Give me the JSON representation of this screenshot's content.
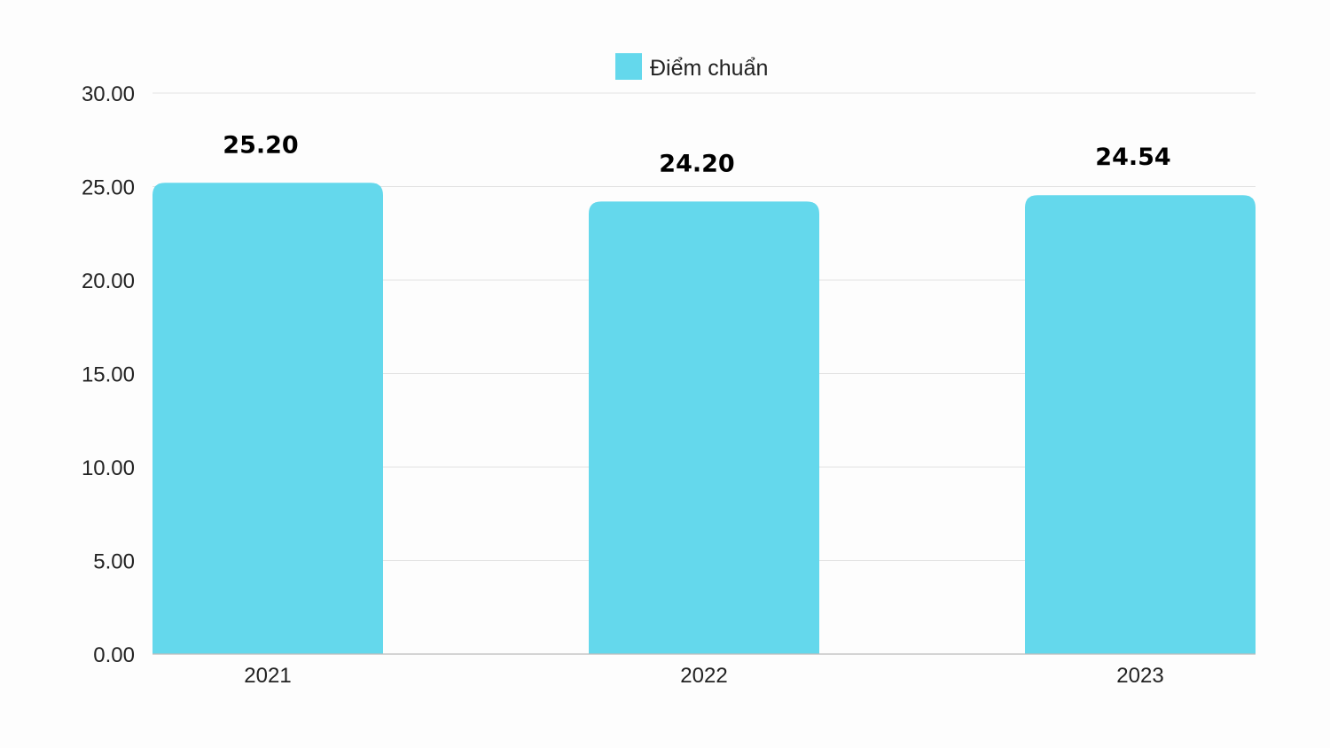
{
  "chart_data": {
    "type": "bar",
    "categories": [
      "2021",
      "2022",
      "2023"
    ],
    "series": [
      {
        "name": "Điểm chuẩn",
        "values": [
          25.2,
          24.2,
          24.54
        ]
      }
    ],
    "data_labels": [
      "25.20",
      "24.20",
      "24.54"
    ],
    "y_ticks": [
      "0.00",
      "5.00",
      "10.00",
      "15.00",
      "20.00",
      "25.00",
      "30.00"
    ],
    "ylim": [
      0,
      30
    ],
    "grid": true,
    "legend_position": "top-center",
    "colors": {
      "bar": "#64d8ec"
    }
  }
}
